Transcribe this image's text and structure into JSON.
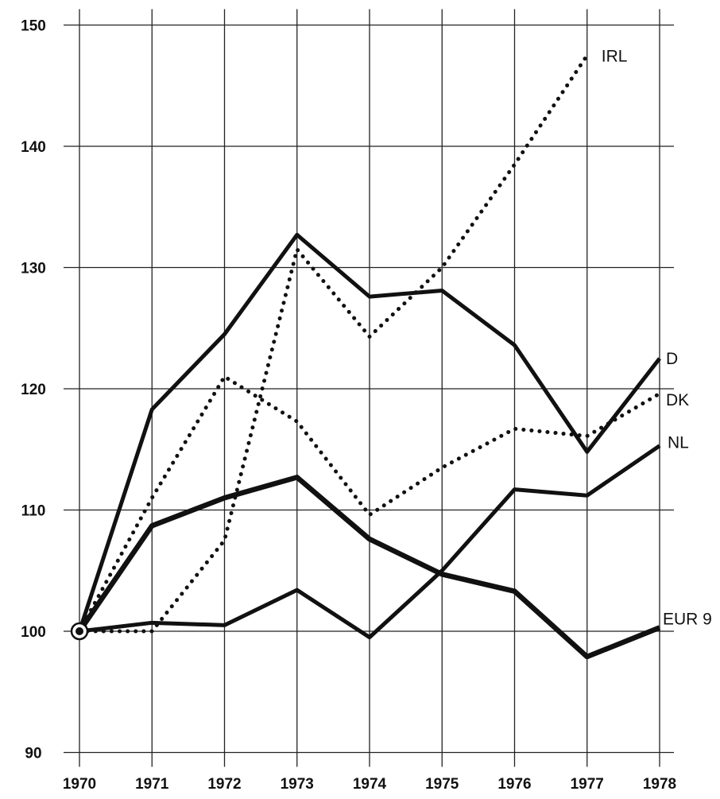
{
  "chart_data": {
    "type": "line",
    "title": "",
    "xlabel": "",
    "ylabel": "",
    "x": [
      "1970",
      "1971",
      "1972",
      "1973",
      "1974",
      "1975",
      "1976",
      "1977",
      "1978"
    ],
    "ylim": [
      90,
      150
    ],
    "yticks": [
      "90",
      "100",
      "110",
      "120",
      "130",
      "140",
      "150"
    ],
    "grid": true,
    "legend": "none; series labelled at right end of lines",
    "series": [
      {
        "name": "IRL",
        "style": "dotted",
        "values": [
          100,
          100,
          107.5,
          131.5,
          124.3,
          130,
          138.5,
          147.5,
          null
        ]
      },
      {
        "name": "D",
        "style": "solid",
        "values": [
          100,
          118.3,
          124.5,
          132.7,
          127.6,
          128.1,
          123.6,
          114.8,
          122.5
        ]
      },
      {
        "name": "DK",
        "style": "dotted",
        "values": [
          100,
          111,
          121,
          117.3,
          109.6,
          113.5,
          116.7,
          116.1,
          119.6
        ]
      },
      {
        "name": "NL",
        "style": "solid",
        "values": [
          100,
          100.7,
          100.5,
          103.4,
          99.5,
          105,
          111.7,
          111.2,
          115.3
        ]
      },
      {
        "name": "EUR 9",
        "style": "solid-thick",
        "values": [
          100,
          108.7,
          111,
          112.7,
          107.6,
          104.7,
          103.3,
          97.9,
          100.3
        ]
      }
    ]
  }
}
